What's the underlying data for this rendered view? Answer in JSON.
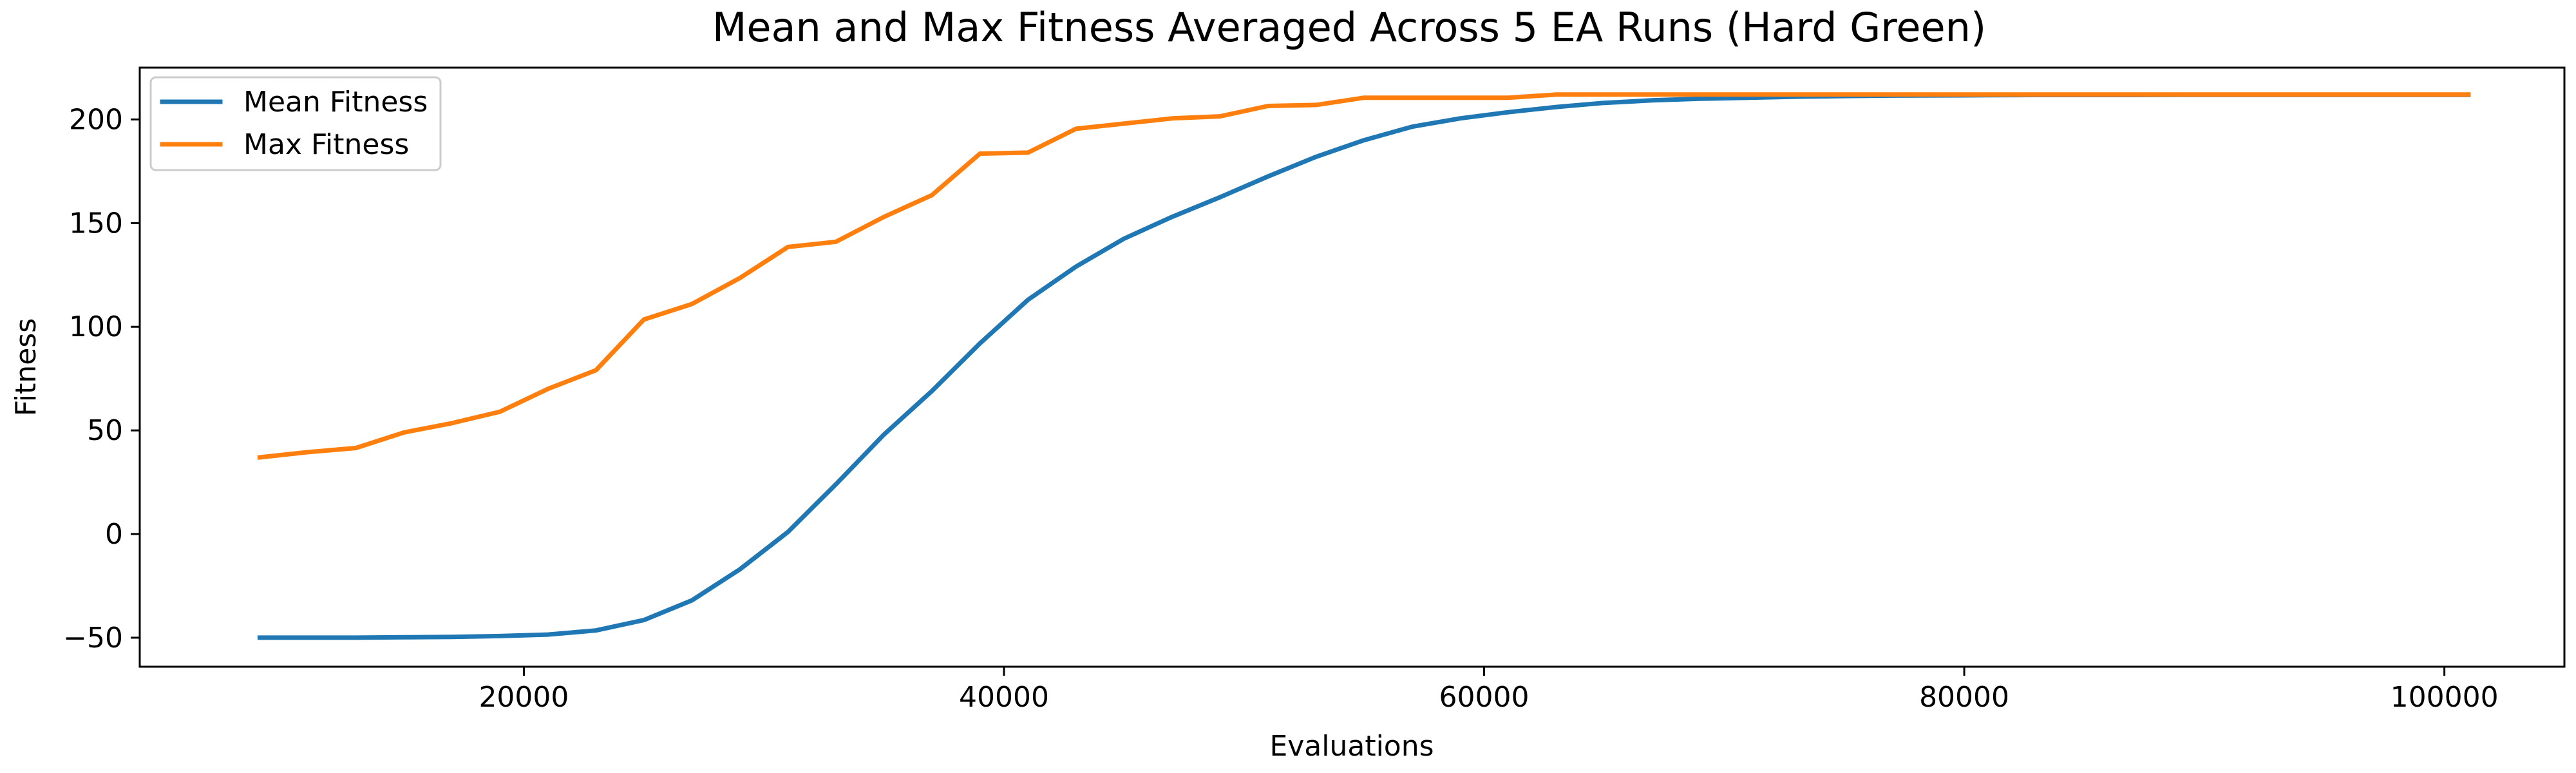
{
  "chart_data": {
    "type": "line",
    "title": "Mean and Max Fitness Averaged Across 5 EA Runs (Hard Green)",
    "xlabel": "Evaluations",
    "ylabel": "Fitness",
    "xlim": [
      4000,
      105000
    ],
    "ylim": [
      -64,
      225
    ],
    "x_ticks": [
      20000,
      40000,
      60000,
      80000,
      100000
    ],
    "y_ticks": [
      -50,
      0,
      50,
      100,
      150,
      200
    ],
    "x_tick_labels": [
      "20000",
      "40000",
      "60000",
      "80000",
      "100000"
    ],
    "y_tick_labels": [
      "−50",
      "0",
      "50",
      "100",
      "150",
      "200"
    ],
    "grid": false,
    "legend_position": "top-left",
    "x": [
      9000,
      11000,
      13000,
      15000,
      17000,
      19000,
      21000,
      23000,
      25000,
      27000,
      29000,
      31000,
      33000,
      35000,
      37000,
      39000,
      41000,
      43000,
      45000,
      47000,
      49000,
      51000,
      53000,
      55000,
      57000,
      59000,
      61000,
      63000,
      65000,
      67000,
      69000,
      71000,
      73000,
      75000,
      77000,
      79000,
      81000,
      83000,
      85000,
      87000,
      89000,
      91000,
      93000,
      95000,
      97000,
      99000,
      101000
    ],
    "series": [
      {
        "name": "Mean Fitness",
        "color": "#1f77b4",
        "values": [
          -50,
          -50,
          -50,
          -49.8,
          -49.6,
          -49.2,
          -48.5,
          -46.5,
          -41.5,
          -32,
          -17,
          1,
          24,
          48,
          69,
          92,
          113,
          129,
          142.5,
          153,
          162.5,
          172.5,
          182,
          190,
          196.5,
          200.5,
          203.5,
          206,
          208,
          209.2,
          210,
          210.5,
          211,
          211.3,
          211.5,
          211.6,
          211.7,
          211.8,
          211.8,
          211.8,
          211.9,
          211.9,
          211.9,
          211.9,
          211.9,
          211.9,
          211.9
        ]
      },
      {
        "name": "Max Fitness",
        "color": "#ff7f0e",
        "values": [
          37,
          39.5,
          41.5,
          49,
          53.5,
          59,
          70,
          79,
          103.5,
          111,
          123.5,
          138.5,
          141,
          153,
          163.5,
          183.5,
          184,
          195.5,
          198,
          200.5,
          201.5,
          206.5,
          207,
          210.5,
          210.5,
          210.5,
          210.5,
          212,
          212,
          212,
          212,
          212,
          212,
          212,
          212,
          212,
          212,
          212,
          212,
          212,
          212,
          212,
          212,
          212,
          212,
          212,
          212
        ]
      }
    ]
  }
}
